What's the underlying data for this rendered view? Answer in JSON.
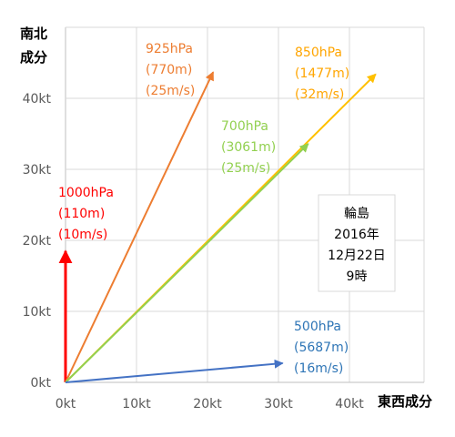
{
  "chart_data": {
    "type": "vector",
    "xlabel": "東西成分",
    "ylabel_lines": [
      "南北",
      "成分"
    ],
    "xlim": [
      0,
      50
    ],
    "ylim": [
      0,
      50
    ],
    "x_ticks": [
      0,
      10,
      20,
      30,
      40
    ],
    "y_ticks": [
      0,
      10,
      20,
      30,
      40
    ],
    "tick_unit": "kt",
    "grid": true,
    "series": [
      {
        "name": "1000hPa",
        "height": "(110m)",
        "speed": "(10m/s)",
        "color": "#ff0000",
        "x": 0,
        "y": 18.5
      },
      {
        "name": "925hPa",
        "height": "(770m)",
        "speed": "(25m/s)",
        "color": "#ed7d31",
        "x": 20.8,
        "y": 43.7
      },
      {
        "name": "850hPa",
        "height": "(1477m)",
        "speed": "(32m/s)",
        "color": "#ffc000",
        "x": 43.7,
        "y": 43.4
      },
      {
        "name": "700hPa",
        "height": "(3061m)",
        "speed": "(25m/s)",
        "color": "#92d050",
        "x": 34.2,
        "y": 33.6
      },
      {
        "name": "500hPa",
        "height": "(5687m)",
        "speed": "(16m/s)",
        "color": "#4472c4",
        "x": 30.6,
        "y": 2.7
      }
    ],
    "info_box": [
      "輪島",
      "2016年",
      "12月22日",
      "9時"
    ]
  }
}
